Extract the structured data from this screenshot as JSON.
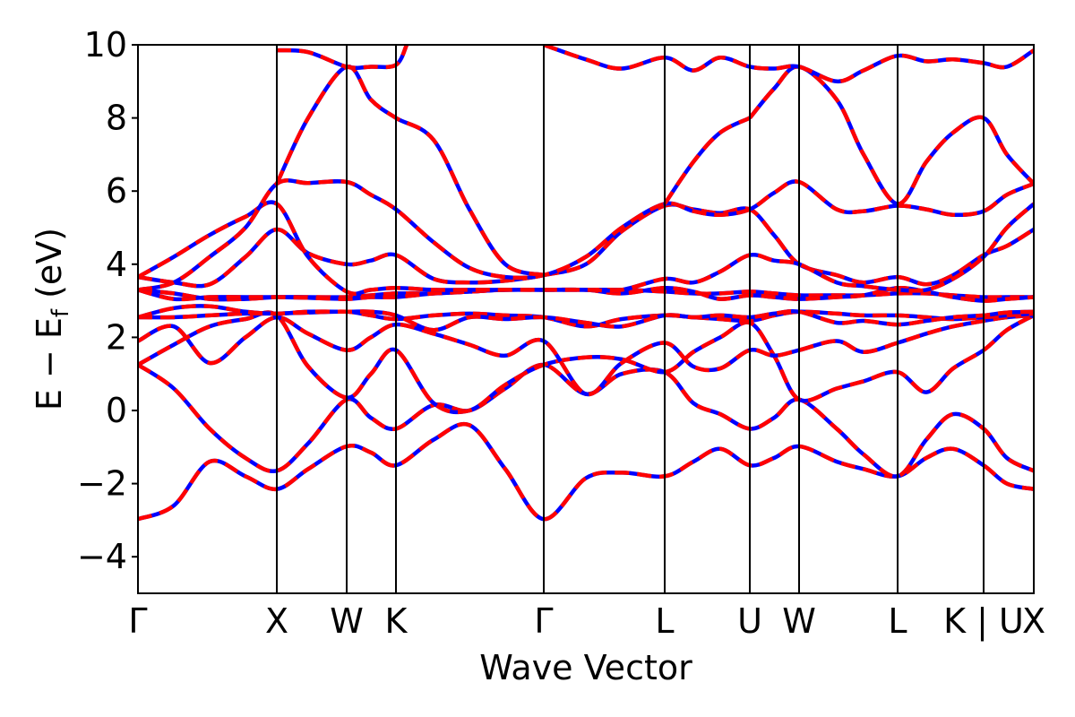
{
  "chart_data": {
    "type": "line",
    "title": "",
    "xlabel": "Wave Vector",
    "ylabel": "E − E",
    "ylabel_sub": "f",
    "ylabel_unit": " (eV)",
    "ylim": [
      -5,
      10
    ],
    "yticks": [
      {
        "value": -4,
        "label": "−4"
      },
      {
        "value": -2,
        "label": "−2"
      },
      {
        "value": 0,
        "label": "0"
      },
      {
        "value": 2,
        "label": "2"
      },
      {
        "value": 4,
        "label": "4"
      },
      {
        "value": 6,
        "label": "6"
      },
      {
        "value": 8,
        "label": "8"
      },
      {
        "value": 10,
        "label": "10"
      }
    ],
    "xlim": [
      0,
      1
    ],
    "kpoints": [
      {
        "label": "Γ",
        "x": 0.0
      },
      {
        "label": "X",
        "x": 0.155
      },
      {
        "label": "W",
        "x": 0.233
      },
      {
        "label": "K",
        "x": 0.288
      },
      {
        "label": "Γ",
        "x": 0.453
      },
      {
        "label": "L",
        "x": 0.588
      },
      {
        "label": "U",
        "x": 0.683
      },
      {
        "label": "W",
        "x": 0.738
      },
      {
        "label": "L",
        "x": 0.848
      },
      {
        "label": "K | U",
        "x": 0.944
      },
      {
        "label": "X",
        "x": 1.0
      }
    ],
    "grid": false,
    "legend": "none",
    "series_colors": {
      "blue": "#0000ff",
      "red": "#ff0000"
    },
    "series": [
      {
        "x": [
          0.0,
          0.04,
          0.08,
          0.12,
          0.155,
          0.19,
          0.233,
          0.26,
          0.288,
          0.33,
          0.37,
          0.41,
          0.453,
          0.5,
          0.54,
          0.588,
          0.62,
          0.65,
          0.683,
          0.71,
          0.738,
          0.78,
          0.81,
          0.848,
          0.88,
          0.91,
          0.944,
          0.97,
          1.0
        ],
        "y": [
          -2.97,
          -2.6,
          -1.4,
          -1.8,
          -2.15,
          -1.6,
          -0.98,
          -1.15,
          -1.5,
          -0.8,
          -0.4,
          -1.6,
          -2.97,
          -1.85,
          -1.7,
          -1.8,
          -1.4,
          -1.05,
          -1.5,
          -1.3,
          -0.98,
          -1.4,
          -1.6,
          -1.8,
          -1.3,
          -1.05,
          -1.5,
          -2.0,
          -2.15
        ]
      },
      {
        "x": [
          0.0,
          0.04,
          0.08,
          0.12,
          0.155,
          0.19,
          0.233,
          0.26,
          0.288,
          0.33,
          0.37,
          0.41,
          0.453,
          0.5,
          0.54,
          0.588,
          0.62,
          0.65,
          0.683,
          0.71,
          0.738,
          0.78,
          0.81,
          0.848,
          0.88,
          0.91,
          0.944,
          0.97,
          1.0
        ],
        "y": [
          1.25,
          0.6,
          -0.5,
          -1.3,
          -1.65,
          -0.9,
          0.3,
          -0.2,
          -0.5,
          0.15,
          0.0,
          0.6,
          1.25,
          0.45,
          1.0,
          1.05,
          0.2,
          -0.1,
          -0.5,
          -0.2,
          0.3,
          -0.5,
          -1.2,
          -1.8,
          -0.8,
          -0.1,
          -0.5,
          -1.3,
          -1.65
        ]
      },
      {
        "x": [
          0.0,
          0.04,
          0.08,
          0.12,
          0.155,
          0.19,
          0.233,
          0.26,
          0.288,
          0.33,
          0.37,
          0.41,
          0.453,
          0.5,
          0.54,
          0.588,
          0.62,
          0.65,
          0.683,
          0.71,
          0.738,
          0.78,
          0.81,
          0.848,
          0.88,
          0.91,
          0.944,
          0.97,
          1.0
        ],
        "y": [
          1.25,
          1.8,
          2.3,
          2.5,
          2.6,
          1.2,
          0.35,
          1.0,
          1.65,
          0.2,
          0.0,
          0.7,
          1.25,
          1.45,
          1.4,
          1.05,
          1.6,
          2.0,
          2.4,
          1.5,
          0.3,
          0.6,
          0.8,
          1.05,
          0.5,
          1.15,
          1.65,
          2.2,
          2.6
        ]
      },
      {
        "x": [
          0.0,
          0.04,
          0.08,
          0.12,
          0.155,
          0.19,
          0.233,
          0.26,
          0.288,
          0.33,
          0.37,
          0.41,
          0.453,
          0.5,
          0.54,
          0.588,
          0.62,
          0.65,
          0.683,
          0.71,
          0.738,
          0.78,
          0.81,
          0.848,
          0.88,
          0.91,
          0.944,
          0.97,
          1.0
        ],
        "y": [
          1.9,
          2.3,
          1.3,
          2.0,
          2.55,
          2.1,
          1.65,
          2.0,
          2.35,
          2.1,
          1.8,
          1.5,
          1.9,
          0.45,
          1.3,
          1.85,
          1.2,
          1.15,
          1.65,
          1.5,
          1.65,
          1.9,
          1.6,
          1.85,
          2.1,
          2.3,
          2.45,
          2.55,
          2.6
        ]
      },
      {
        "x": [
          0.0,
          0.04,
          0.08,
          0.12,
          0.155,
          0.19,
          0.233,
          0.26,
          0.288,
          0.33,
          0.37,
          0.41,
          0.453,
          0.5,
          0.54,
          0.588,
          0.62,
          0.65,
          0.683,
          0.71,
          0.738,
          0.78,
          0.81,
          0.848,
          0.88,
          0.91,
          0.944,
          0.97,
          1.0
        ],
        "y": [
          2.55,
          2.55,
          2.6,
          2.65,
          2.65,
          2.68,
          2.7,
          2.6,
          2.5,
          2.6,
          2.65,
          2.6,
          2.55,
          2.3,
          2.5,
          2.6,
          2.55,
          2.5,
          2.45,
          2.6,
          2.7,
          2.65,
          2.6,
          2.6,
          2.55,
          2.5,
          2.55,
          2.6,
          2.65
        ]
      },
      {
        "x": [
          0.0,
          0.04,
          0.08,
          0.12,
          0.155,
          0.19,
          0.233,
          0.26,
          0.288,
          0.33,
          0.37,
          0.41,
          0.453,
          0.5,
          0.54,
          0.588,
          0.62,
          0.65,
          0.683,
          0.71,
          0.738,
          0.78,
          0.81,
          0.848,
          0.88,
          0.91,
          0.944,
          0.97,
          1.0
        ],
        "y": [
          2.55,
          2.8,
          2.85,
          2.7,
          2.65,
          2.7,
          2.7,
          2.7,
          2.6,
          2.2,
          2.55,
          2.5,
          2.55,
          2.4,
          2.3,
          2.6,
          2.55,
          2.6,
          2.55,
          2.65,
          2.7,
          2.4,
          2.45,
          2.35,
          2.45,
          2.55,
          2.6,
          2.68,
          2.7
        ]
      },
      {
        "x": [
          0.0,
          0.04,
          0.08,
          0.12,
          0.155,
          0.19,
          0.233,
          0.26,
          0.288,
          0.33,
          0.37,
          0.41,
          0.453,
          0.5,
          0.54,
          0.588,
          0.62,
          0.65,
          0.683,
          0.71,
          0.738,
          0.78,
          0.81,
          0.848,
          0.88,
          0.91,
          0.944,
          0.97,
          1.0
        ],
        "y": [
          3.3,
          3.2,
          3.05,
          3.05,
          3.1,
          3.1,
          3.1,
          3.15,
          3.2,
          3.2,
          3.25,
          3.3,
          3.3,
          3.3,
          3.3,
          3.25,
          3.2,
          3.2,
          3.25,
          3.2,
          3.15,
          3.15,
          3.15,
          3.2,
          3.2,
          3.15,
          3.1,
          3.1,
          3.1
        ]
      },
      {
        "x": [
          0.0,
          0.04,
          0.08,
          0.12,
          0.155,
          0.19,
          0.233,
          0.26,
          0.288,
          0.33,
          0.37,
          0.41,
          0.453,
          0.5,
          0.54,
          0.588,
          0.62,
          0.65,
          0.683,
          0.71,
          0.738,
          0.78,
          0.81,
          0.848,
          0.88,
          0.91,
          0.944,
          0.97,
          1.0
        ],
        "y": [
          3.3,
          3.05,
          3.1,
          3.1,
          3.1,
          3.08,
          3.05,
          3.1,
          3.1,
          3.2,
          3.25,
          3.3,
          3.3,
          3.3,
          3.2,
          3.35,
          3.25,
          3.05,
          3.15,
          3.1,
          3.05,
          3.1,
          3.15,
          3.35,
          3.25,
          3.1,
          3.0,
          3.05,
          3.1
        ]
      },
      {
        "x": [
          0.0,
          0.04,
          0.08,
          0.12,
          0.155,
          0.19,
          0.233,
          0.26,
          0.288,
          0.33,
          0.37,
          0.41,
          0.453,
          0.5,
          0.54,
          0.588,
          0.62,
          0.65,
          0.683,
          0.71,
          0.738,
          0.78,
          0.81,
          0.848,
          0.88,
          0.91,
          0.944,
          0.97,
          1.0
        ],
        "y": [
          3.65,
          3.5,
          3.45,
          4.2,
          4.95,
          4.3,
          4.0,
          4.1,
          4.25,
          3.6,
          3.5,
          3.55,
          3.7,
          4.0,
          4.9,
          5.6,
          5.5,
          5.4,
          5.5,
          4.8,
          4.0,
          3.7,
          3.5,
          3.65,
          3.45,
          3.7,
          4.25,
          4.5,
          4.95
        ]
      },
      {
        "x": [
          0.0,
          0.04,
          0.08,
          0.12,
          0.155,
          0.19,
          0.233,
          0.26,
          0.288,
          0.33,
          0.37,
          0.41,
          0.453,
          0.5,
          0.54,
          0.588,
          0.62,
          0.65,
          0.683,
          0.71,
          0.738,
          0.78,
          0.81,
          0.848,
          0.88,
          0.91,
          0.944,
          0.97,
          1.0
        ],
        "y": [
          3.65,
          4.2,
          4.8,
          5.3,
          5.65,
          4.2,
          3.25,
          3.3,
          3.35,
          3.3,
          3.3,
          3.3,
          3.3,
          3.3,
          3.3,
          3.6,
          3.5,
          3.8,
          4.25,
          4.1,
          4.0,
          3.5,
          3.4,
          3.3,
          3.3,
          3.6,
          4.2,
          5.0,
          5.65
        ]
      },
      {
        "x": [
          0.0,
          0.04,
          0.08,
          0.12,
          0.155,
          0.19,
          0.233,
          0.26,
          0.288,
          0.33,
          0.37,
          0.41,
          0.453,
          0.5,
          0.54,
          0.588,
          0.62,
          0.65,
          0.683,
          0.71,
          0.738,
          0.78,
          0.81,
          0.848,
          0.88,
          0.91,
          0.944,
          0.97,
          1.0
        ],
        "y": [
          3.3,
          3.5,
          4.2,
          5.0,
          6.2,
          6.22,
          6.25,
          5.9,
          5.5,
          4.6,
          3.9,
          3.65,
          3.7,
          4.2,
          5.0,
          5.65,
          5.45,
          5.35,
          5.5,
          5.95,
          6.25,
          5.5,
          5.45,
          5.6,
          5.5,
          5.35,
          5.45,
          5.9,
          6.2
        ]
      },
      {
        "x": [
          0.155,
          0.19,
          0.233,
          0.26,
          0.288,
          0.33,
          0.37,
          0.41,
          0.453
        ],
        "y": [
          6.2,
          8.0,
          9.4,
          8.5,
          8.0,
          7.4,
          5.5,
          4.0,
          3.7
        ]
      },
      {
        "x": [
          0.683,
          0.71,
          0.738,
          0.78,
          0.81,
          0.848,
          0.88,
          0.91,
          0.944,
          0.97,
          1.0
        ],
        "y": [
          8.0,
          8.8,
          9.4,
          8.5,
          7.0,
          5.65,
          6.8,
          7.6,
          8.0,
          7.0,
          6.2
        ]
      },
      {
        "x": [
          0.588,
          0.62,
          0.65,
          0.683
        ],
        "y": [
          5.65,
          6.8,
          7.6,
          8.0
        ]
      },
      {
        "x": [
          0.155,
          0.19,
          0.233,
          0.26,
          0.288,
          0.3
        ],
        "y": [
          9.85,
          9.8,
          9.4,
          9.4,
          9.45,
          10.0
        ]
      },
      {
        "x": [
          0.453,
          0.5,
          0.54,
          0.588,
          0.62,
          0.65,
          0.683,
          0.71,
          0.738,
          0.78,
          0.81,
          0.848,
          0.88,
          0.91,
          0.944,
          0.97,
          1.0
        ],
        "y": [
          10.0,
          9.6,
          9.35,
          9.65,
          9.3,
          9.65,
          9.4,
          9.35,
          9.4,
          9.0,
          9.3,
          9.7,
          9.55,
          9.6,
          9.5,
          9.4,
          9.85
        ]
      }
    ]
  }
}
